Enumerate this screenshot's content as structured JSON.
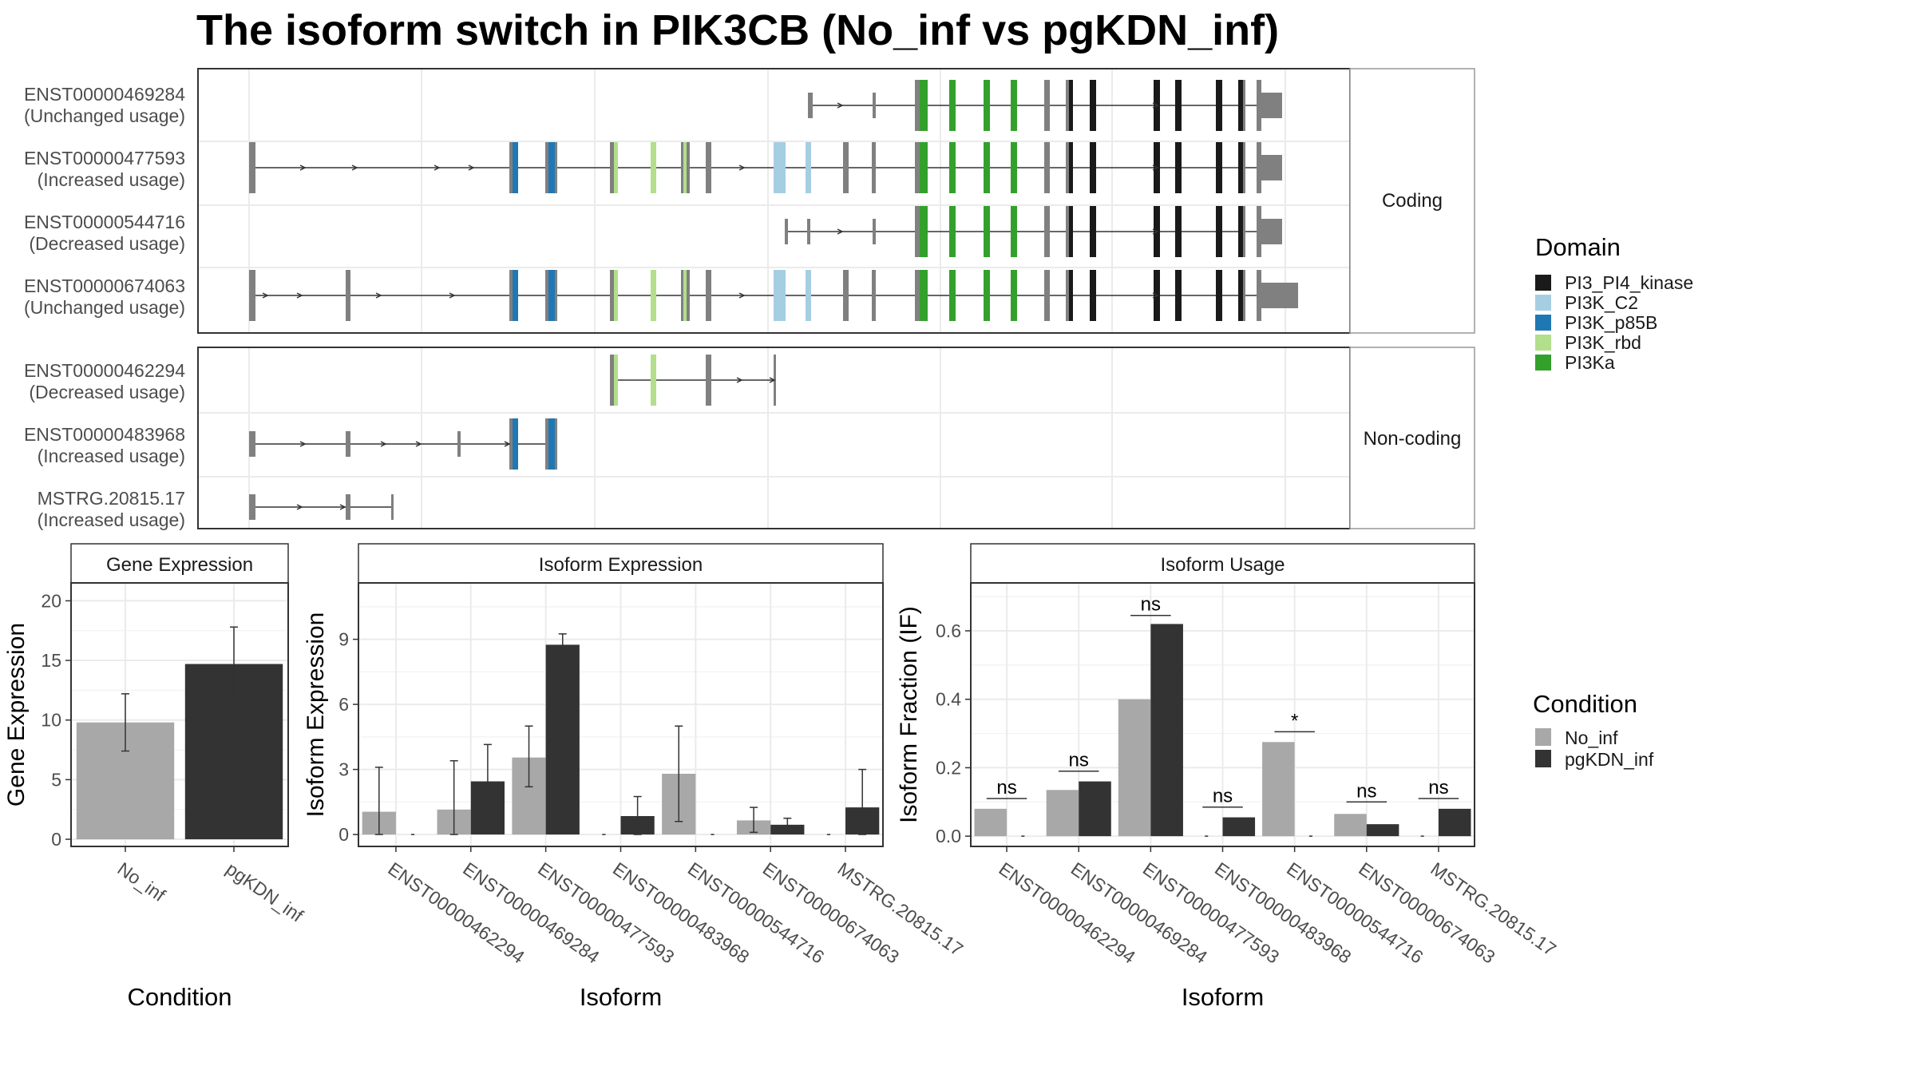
{
  "title": "The isoform switch in PIK3CB (No_inf vs pgKDN_inf)",
  "structure": {
    "facets": [
      "Coding",
      "Non-coding"
    ],
    "coding_isoforms": [
      {
        "id": "ENST00000469284",
        "usage": "(Unchanged usage)"
      },
      {
        "id": "ENST00000477593",
        "usage": "(Increased usage)"
      },
      {
        "id": "ENST00000544716",
        "usage": "(Decreased usage)"
      },
      {
        "id": "ENST00000674063",
        "usage": "(Unchanged usage)"
      }
    ],
    "noncoding_isoforms": [
      {
        "id": "ENST00000462294",
        "usage": "(Decreased usage)"
      },
      {
        "id": "ENST00000483968",
        "usage": "(Increased usage)"
      },
      {
        "id": "MSTRG.20815.17",
        "usage": "(Increased usage)"
      }
    ]
  },
  "domain_legend": {
    "title": "Domain",
    "items": [
      {
        "label": "PI3_PI4_kinase",
        "color": "#1a1a1a"
      },
      {
        "label": "PI3K_C2",
        "color": "#a6cee3"
      },
      {
        "label": "PI3K_p85B",
        "color": "#1f78b4"
      },
      {
        "label": "PI3K_rbd",
        "color": "#b2df8a"
      },
      {
        "label": "PI3Ka",
        "color": "#33a02c"
      }
    ]
  },
  "condition_legend": {
    "title": "Condition",
    "items": [
      {
        "label": "No_inf",
        "color": "#a8a8a8"
      },
      {
        "label": "pgKDN_inf",
        "color": "#333333"
      }
    ]
  },
  "chart_data": [
    {
      "type": "bar",
      "title": "Gene Expression",
      "xlabel": "Condition",
      "ylabel": "Gene Expression",
      "categories": [
        "No_inf",
        "pgKDN_inf"
      ],
      "values": [
        9.8,
        14.7
      ],
      "error_low": [
        7.4,
        11.6
      ],
      "error_high": [
        12.2,
        17.8
      ],
      "ylim": [
        -0.6,
        21.5
      ],
      "yticks": [
        0,
        5,
        10,
        15,
        20
      ],
      "colors": [
        "#a8a8a8",
        "#333333"
      ]
    },
    {
      "type": "bar",
      "title": "Isoform Expression",
      "xlabel": "Isoform",
      "ylabel": "Isoform Expression",
      "categories": [
        "ENST00000462294",
        "ENST00000469284",
        "ENST00000477593",
        "ENST00000483968",
        "ENST00000544716",
        "ENST00000674063",
        "MSTRG.20815.17"
      ],
      "series": [
        {
          "name": "No_inf",
          "values": [
            1.05,
            1.15,
            3.55,
            0.0,
            2.8,
            0.65,
            0.0
          ],
          "error_low": [
            0.0,
            0.0,
            2.2,
            0.0,
            0.6,
            0.1,
            0.0
          ],
          "error_high": [
            3.1,
            3.4,
            5.0,
            0.0,
            5.0,
            1.25,
            0.0
          ]
        },
        {
          "name": "pgKDN_inf",
          "values": [
            0.0,
            2.45,
            8.75,
            0.85,
            0.0,
            0.45,
            1.25
          ],
          "error_low": [
            0.0,
            0.5,
            8.25,
            0.0,
            0.0,
            0.1,
            0.0
          ],
          "error_high": [
            0.0,
            4.15,
            9.25,
            1.75,
            0.0,
            0.75,
            3.0
          ]
        }
      ],
      "ylim": [
        -0.55,
        11.6
      ],
      "yticks": [
        0,
        3,
        6,
        9
      ]
    },
    {
      "type": "bar",
      "title": "Isoform Usage",
      "xlabel": "Isoform",
      "ylabel": "Isoform Fraction (IF)",
      "categories": [
        "ENST00000462294",
        "ENST00000469284",
        "ENST00000477593",
        "ENST00000483968",
        "ENST00000544716",
        "ENST00000674063",
        "MSTRG.20815.17"
      ],
      "series": [
        {
          "name": "No_inf",
          "values": [
            0.08,
            0.135,
            0.4,
            0.0,
            0.275,
            0.065,
            0.0
          ]
        },
        {
          "name": "pgKDN_inf",
          "values": [
            0.0,
            0.16,
            0.62,
            0.055,
            0.0,
            0.035,
            0.08
          ]
        }
      ],
      "significance": [
        "ns",
        "ns",
        "ns",
        "ns",
        "*",
        "ns",
        "ns"
      ],
      "significance_y": [
        0.11,
        0.19,
        0.645,
        0.085,
        0.305,
        0.1,
        0.11
      ],
      "ylim": [
        -0.03,
        0.74
      ],
      "yticks": [
        0.0,
        0.2,
        0.4,
        0.6
      ]
    }
  ]
}
